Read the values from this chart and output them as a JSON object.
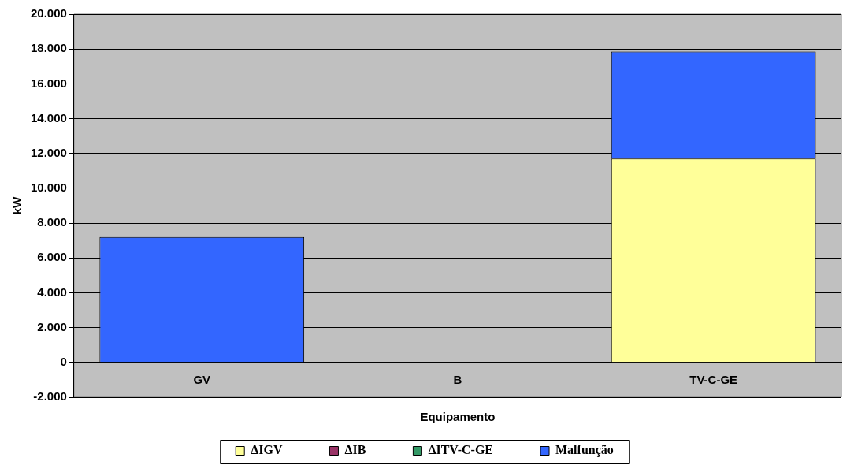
{
  "chart_data": {
    "type": "bar",
    "stacked": true,
    "xlabel": "Equipamento",
    "ylabel": "kW",
    "categories": [
      "GV",
      "B",
      "TV-C-GE"
    ],
    "series": [
      {
        "name": "ΔIGV",
        "color": "#ffff99",
        "values": [
          0,
          0,
          11700
        ]
      },
      {
        "name": "ΔIB",
        "color": "#993366",
        "values": [
          0,
          0,
          0
        ]
      },
      {
        "name": "ΔITV-C-GE",
        "color": "#339966",
        "values": [
          0,
          0,
          0
        ]
      },
      {
        "name": "Malfunção",
        "color": "#3366ff",
        "values": [
          7200,
          0,
          6150
        ]
      }
    ],
    "ylim": [
      -2000,
      20000
    ],
    "yticks": [
      {
        "value": -2000,
        "label": "-2.000"
      },
      {
        "value": 0,
        "label": "0"
      },
      {
        "value": 2000,
        "label": "2.000"
      },
      {
        "value": 4000,
        "label": "4.000"
      },
      {
        "value": 6000,
        "label": "6.000"
      },
      {
        "value": 8000,
        "label": "8.000"
      },
      {
        "value": 10000,
        "label": "10.000"
      },
      {
        "value": 12000,
        "label": "12.000"
      },
      {
        "value": 14000,
        "label": "14.000"
      },
      {
        "value": 16000,
        "label": "16.000"
      },
      {
        "value": 18000,
        "label": "18.000"
      },
      {
        "value": 20000,
        "label": "20.000"
      }
    ],
    "grid": "y",
    "legend": "bottom"
  }
}
